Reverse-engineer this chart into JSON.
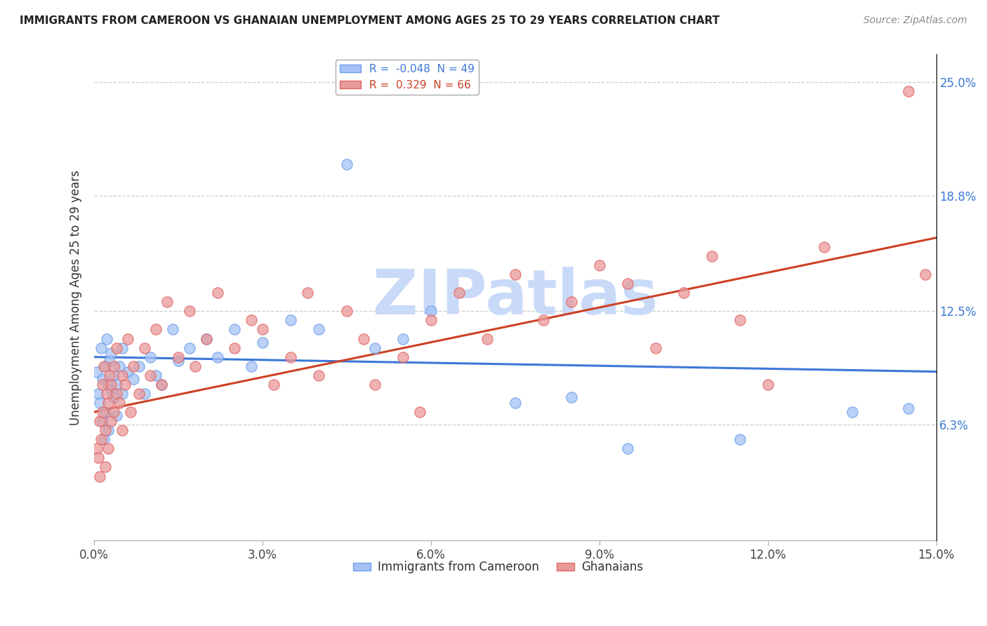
{
  "title": "IMMIGRANTS FROM CAMEROON VS GHANAIAN UNEMPLOYMENT AMONG AGES 25 TO 29 YEARS CORRELATION CHART",
  "source": "Source: ZipAtlas.com",
  "ylabel": "Unemployment Among Ages 25 to 29 years",
  "xlim": [
    0.0,
    15.0
  ],
  "ylim": [
    0.0,
    26.5
  ],
  "right_yticks": [
    6.3,
    12.5,
    18.8,
    25.0
  ],
  "right_yticklabels": [
    "6.3%",
    "12.5%",
    "18.8%",
    "25.0%"
  ],
  "xticks": [
    0.0,
    3.0,
    6.0,
    9.0,
    12.0,
    15.0
  ],
  "xticklabels": [
    "0.0%",
    "3.0%",
    "6.0%",
    "9.0%",
    "12.0%",
    "15.0%"
  ],
  "blue_R": -0.048,
  "blue_N": 49,
  "pink_R": 0.329,
  "pink_N": 66,
  "blue_fill": "#a4c2f4",
  "pink_fill": "#ea9999",
  "blue_edge": "#6d9eeb",
  "pink_edge": "#e06666",
  "blue_line_color": "#3c78d8",
  "pink_line_color": "#cc4125",
  "watermark": "ZIPatlas",
  "watermark_color": "#c9daf8",
  "legend_label_blue": "Immigrants from Cameroon",
  "legend_label_pink": "Ghanaians",
  "blue_scatter": [
    [
      0.05,
      9.2
    ],
    [
      0.08,
      8.0
    ],
    [
      0.1,
      7.5
    ],
    [
      0.12,
      10.5
    ],
    [
      0.15,
      6.5
    ],
    [
      0.15,
      8.8
    ],
    [
      0.18,
      5.5
    ],
    [
      0.2,
      9.5
    ],
    [
      0.2,
      7.0
    ],
    [
      0.22,
      11.0
    ],
    [
      0.25,
      8.5
    ],
    [
      0.25,
      6.0
    ],
    [
      0.28,
      9.8
    ],
    [
      0.3,
      8.2
    ],
    [
      0.3,
      10.2
    ],
    [
      0.35,
      7.8
    ],
    [
      0.35,
      9.0
    ],
    [
      0.4,
      8.5
    ],
    [
      0.4,
      6.8
    ],
    [
      0.45,
      9.5
    ],
    [
      0.5,
      8.0
    ],
    [
      0.5,
      10.5
    ],
    [
      0.6,
      9.2
    ],
    [
      0.7,
      8.8
    ],
    [
      0.8,
      9.5
    ],
    [
      0.9,
      8.0
    ],
    [
      1.0,
      10.0
    ],
    [
      1.1,
      9.0
    ],
    [
      1.2,
      8.5
    ],
    [
      1.4,
      11.5
    ],
    [
      1.5,
      9.8
    ],
    [
      1.7,
      10.5
    ],
    [
      2.0,
      11.0
    ],
    [
      2.2,
      10.0
    ],
    [
      2.5,
      11.5
    ],
    [
      2.8,
      9.5
    ],
    [
      3.0,
      10.8
    ],
    [
      3.5,
      12.0
    ],
    [
      4.0,
      11.5
    ],
    [
      4.5,
      20.5
    ],
    [
      5.0,
      10.5
    ],
    [
      5.5,
      11.0
    ],
    [
      6.0,
      12.5
    ],
    [
      7.5,
      7.5
    ],
    [
      8.5,
      7.8
    ],
    [
      9.5,
      5.0
    ],
    [
      11.5,
      5.5
    ],
    [
      13.5,
      7.0
    ],
    [
      14.5,
      7.2
    ]
  ],
  "pink_scatter": [
    [
      0.05,
      5.0
    ],
    [
      0.08,
      4.5
    ],
    [
      0.1,
      6.5
    ],
    [
      0.1,
      3.5
    ],
    [
      0.12,
      5.5
    ],
    [
      0.15,
      8.5
    ],
    [
      0.15,
      7.0
    ],
    [
      0.18,
      9.5
    ],
    [
      0.2,
      6.0
    ],
    [
      0.2,
      4.0
    ],
    [
      0.22,
      8.0
    ],
    [
      0.25,
      7.5
    ],
    [
      0.25,
      5.0
    ],
    [
      0.28,
      9.0
    ],
    [
      0.3,
      6.5
    ],
    [
      0.3,
      8.5
    ],
    [
      0.35,
      7.0
    ],
    [
      0.35,
      9.5
    ],
    [
      0.4,
      8.0
    ],
    [
      0.4,
      10.5
    ],
    [
      0.45,
      7.5
    ],
    [
      0.5,
      9.0
    ],
    [
      0.5,
      6.0
    ],
    [
      0.55,
      8.5
    ],
    [
      0.6,
      11.0
    ],
    [
      0.65,
      7.0
    ],
    [
      0.7,
      9.5
    ],
    [
      0.8,
      8.0
    ],
    [
      0.9,
      10.5
    ],
    [
      1.0,
      9.0
    ],
    [
      1.1,
      11.5
    ],
    [
      1.2,
      8.5
    ],
    [
      1.3,
      13.0
    ],
    [
      1.5,
      10.0
    ],
    [
      1.7,
      12.5
    ],
    [
      1.8,
      9.5
    ],
    [
      2.0,
      11.0
    ],
    [
      2.2,
      13.5
    ],
    [
      2.5,
      10.5
    ],
    [
      2.8,
      12.0
    ],
    [
      3.0,
      11.5
    ],
    [
      3.2,
      8.5
    ],
    [
      3.5,
      10.0
    ],
    [
      3.8,
      13.5
    ],
    [
      4.0,
      9.0
    ],
    [
      4.5,
      12.5
    ],
    [
      4.8,
      11.0
    ],
    [
      5.0,
      8.5
    ],
    [
      5.5,
      10.0
    ],
    [
      5.8,
      7.0
    ],
    [
      6.0,
      12.0
    ],
    [
      6.5,
      13.5
    ],
    [
      7.0,
      11.0
    ],
    [
      7.5,
      14.5
    ],
    [
      8.0,
      12.0
    ],
    [
      8.5,
      13.0
    ],
    [
      9.0,
      15.0
    ],
    [
      9.5,
      14.0
    ],
    [
      10.0,
      10.5
    ],
    [
      10.5,
      13.5
    ],
    [
      11.0,
      15.5
    ],
    [
      11.5,
      12.0
    ],
    [
      12.0,
      8.5
    ],
    [
      13.0,
      16.0
    ],
    [
      14.5,
      24.5
    ],
    [
      14.8,
      14.5
    ]
  ],
  "blue_trend_x": [
    0.0,
    15.0
  ],
  "blue_trend_y": [
    10.0,
    9.2
  ],
  "pink_trend_x": [
    0.0,
    15.0
  ],
  "pink_trend_y": [
    7.0,
    16.5
  ],
  "figsize": [
    14.06,
    8.92
  ],
  "dpi": 100
}
